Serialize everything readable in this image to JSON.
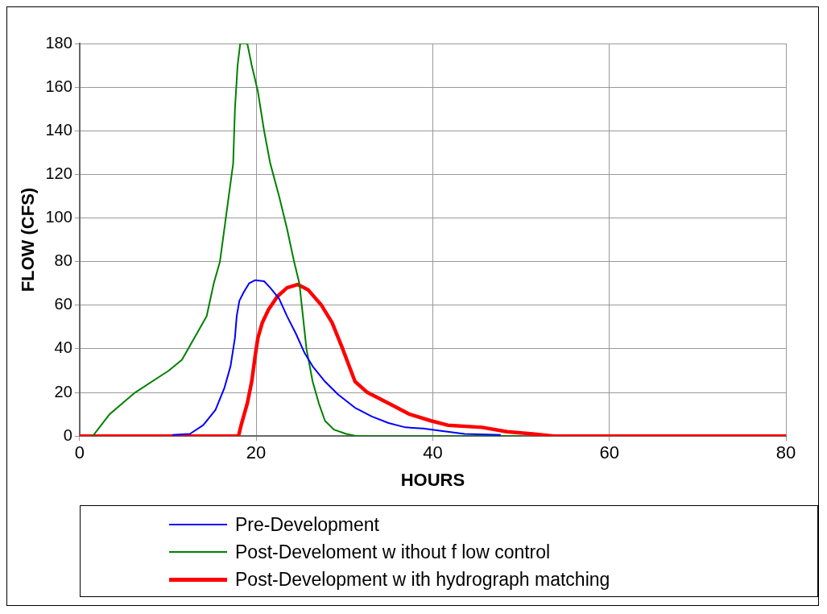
{
  "chart_data": {
    "type": "line",
    "xlabel": "HOURS",
    "ylabel": "FLOW (CFS)",
    "xlim": [
      0,
      80
    ],
    "xticks": [
      0,
      20,
      40,
      60,
      80
    ],
    "ylim": [
      0,
      180
    ],
    "yticks": [
      0,
      20,
      40,
      60,
      80,
      100,
      120,
      140,
      160,
      180
    ],
    "grid": true,
    "legend": "bottom",
    "marker": "none",
    "line_style": "solid",
    "series": [
      {
        "name": "Pre-Development",
        "color": "#0000ff",
        "x": [
          10.5,
          12.5,
          14,
          15.4,
          16.4,
          17.1,
          17.6,
          17.8,
          18.1,
          18.6,
          19.2,
          19.9,
          20.9,
          21.6,
          22.6,
          23.5,
          24.5,
          25.5,
          26.4,
          27.8,
          29.3,
          31.2,
          33.1,
          35,
          36.9,
          38.9,
          40.8,
          43.6,
          47.7
        ],
        "values": [
          0.5,
          1,
          5,
          12,
          22,
          32,
          45,
          55,
          62,
          66,
          70,
          71.5,
          71,
          68,
          63,
          55,
          47,
          38,
          32,
          25,
          19,
          13,
          9,
          6,
          4,
          3.5,
          2.5,
          1,
          0.5
        ]
      },
      {
        "name": "Post-Develoment w ithout f low  control",
        "color": "#008000",
        "x": [
          1.5,
          3.4,
          6.3,
          10.1,
          11.6,
          13,
          14.4,
          15.2,
          15.9,
          16.4,
          16.9,
          17.4,
          17.6,
          17.9,
          18.2,
          19,
          19.5,
          20.2,
          20.9,
          21.6,
          22.6,
          23.5,
          24.3,
          24.9,
          25.3,
          25.7,
          26.4,
          27.1,
          27.8,
          28.8,
          30.2,
          31.4,
          50
        ],
        "values": [
          0,
          10,
          20,
          30,
          35,
          45,
          55,
          70,
          80,
          95,
          110,
          125,
          150,
          170,
          180,
          180,
          170,
          158,
          140,
          125,
          110,
          95,
          80,
          70,
          55,
          40,
          25,
          15,
          7,
          3,
          1,
          0,
          0
        ]
      },
      {
        "name": "Post-Development w ith hydrograph matching",
        "color": "#ff0000",
        "x": [
          0,
          18,
          18.3,
          19,
          19.5,
          19.9,
          20.2,
          20.7,
          21.4,
          22.4,
          23.5,
          24.7,
          25.9,
          27.4,
          28.6,
          29.8,
          31.2,
          32.6,
          35,
          37.4,
          39.8,
          41.7,
          45.6,
          48.4,
          51.3,
          53.7,
          80
        ],
        "values": [
          0,
          0,
          5,
          15,
          25,
          37,
          45,
          52,
          58,
          64,
          68,
          69.5,
          67,
          60,
          52,
          40,
          25,
          20,
          15,
          10,
          7,
          5,
          4,
          2,
          1,
          0,
          0
        ]
      }
    ]
  }
}
